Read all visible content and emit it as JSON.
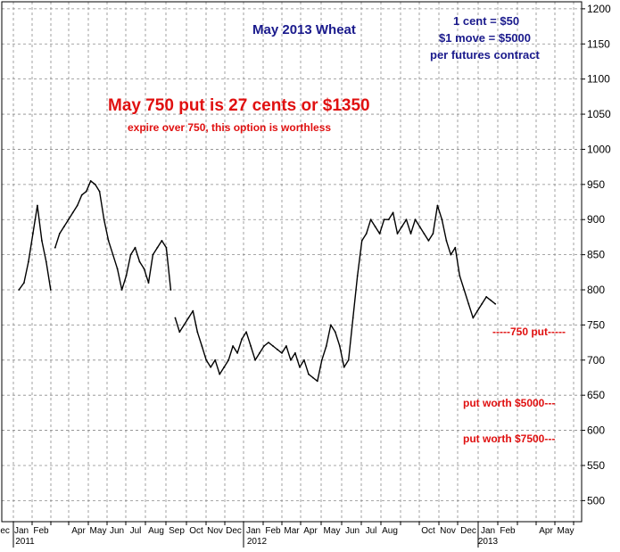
{
  "chart_data": {
    "type": "line",
    "title": "May 2013 Wheat",
    "notes": [
      "1 cent = $50",
      "$1 move = $5000",
      "per futures contract"
    ],
    "headline": "May 750 put is 27 cents or $1350",
    "subhead": "expire over 750, this option is worthless",
    "ylim": [
      470,
      1210
    ],
    "y_ticks": [
      500,
      550,
      600,
      650,
      700,
      750,
      800,
      850,
      900,
      950,
      1000,
      1050,
      1100,
      1150,
      1200
    ],
    "x_ticks": [
      "Dec",
      "Jan",
      "Feb",
      "Apr",
      "May",
      "Jun",
      "Jul",
      "Aug",
      "Sep",
      "Oct",
      "Nov",
      "Dec",
      "Jan",
      "Feb",
      "Mar",
      "Apr",
      "May",
      "Jun",
      "Jul",
      "Aug",
      "Oct",
      "Nov",
      "Dec",
      "Jan",
      "Feb",
      "Apr",
      "May"
    ],
    "year_labels": [
      "2011",
      "2012",
      "2013"
    ],
    "annotations": [
      {
        "text": "-----750 put-----",
        "y": 750
      },
      {
        "text": "put worth $5000---",
        "y": 650
      },
      {
        "text": "put worth $7500---",
        "y": 600
      }
    ],
    "series": [
      {
        "x": [
          "2010-12-28",
          "2011-01-05",
          "2011-01-12",
          "2011-01-19",
          "2011-01-26",
          "2011-02-02",
          "2011-02-09",
          "2011-02-16",
          "2011-02-23",
          "2011-03-02",
          "2011-03-09",
          "2011-03-16",
          "2011-03-23",
          "2011-03-30",
          "2011-04-06",
          "2011-04-13",
          "2011-04-20",
          "2011-04-27",
          "2011-05-04",
          "2011-05-11",
          "2011-05-18",
          "2011-05-25",
          "2011-06-01",
          "2011-06-08",
          "2011-06-15",
          "2011-06-22",
          "2011-06-29",
          "2011-07-06",
          "2011-07-13",
          "2011-07-20",
          "2011-07-27",
          "2011-08-03",
          "2011-08-10",
          "2011-08-17",
          "2011-08-24",
          "2011-08-31",
          "2011-09-07",
          "2011-09-14",
          "2011-09-21",
          "2011-09-28",
          "2011-10-05",
          "2011-10-12",
          "2011-10-19",
          "2011-10-26",
          "2011-11-02",
          "2011-11-09",
          "2011-11-16",
          "2011-11-23",
          "2011-11-30",
          "2011-12-07",
          "2011-12-14",
          "2011-12-21",
          "2011-12-28",
          "2012-01-04",
          "2012-01-11",
          "2012-01-18",
          "2012-01-25",
          "2012-02-01",
          "2012-02-08",
          "2012-02-15",
          "2012-02-22",
          "2012-02-29",
          "2012-03-07",
          "2012-03-14",
          "2012-03-21",
          "2012-03-28",
          "2012-04-04",
          "2012-04-11",
          "2012-04-18",
          "2012-04-25",
          "2012-05-02",
          "2012-05-09",
          "2012-05-16",
          "2012-05-23",
          "2012-05-30",
          "2012-06-06",
          "2012-06-13",
          "2012-06-20",
          "2012-06-27",
          "2012-07-04",
          "2012-07-11",
          "2012-07-18",
          "2012-07-25",
          "2012-08-01",
          "2012-08-08",
          "2012-08-15",
          "2012-08-22",
          "2012-08-29",
          "2012-09-05",
          "2012-09-12",
          "2012-09-19",
          "2012-09-26",
          "2012-10-03",
          "2012-10-10",
          "2012-10-17",
          "2012-10-24",
          "2012-10-31",
          "2012-11-07",
          "2012-11-14",
          "2012-11-21",
          "2012-11-28",
          "2012-12-05",
          "2012-12-12",
          "2012-12-19",
          "2012-12-26",
          "2013-01-02",
          "2013-01-09",
          "2013-01-16"
        ],
        "values": [
          800,
          810,
          840,
          880,
          920,
          870,
          840,
          800,
          860,
          880,
          890,
          900,
          910,
          920,
          935,
          940,
          955,
          950,
          940,
          900,
          870,
          850,
          830,
          800,
          820,
          850,
          860,
          840,
          830,
          810,
          850,
          860,
          870,
          860,
          800,
          760,
          740,
          750,
          760,
          770,
          740,
          720,
          700,
          690,
          700,
          680,
          690,
          700,
          720,
          710,
          730,
          740,
          720,
          700,
          710,
          720,
          725,
          720,
          715,
          710,
          720,
          700,
          710,
          690,
          700,
          680,
          675,
          670,
          700,
          720,
          750,
          740,
          720,
          690,
          700,
          760,
          820,
          870,
          880,
          900,
          890,
          880,
          900,
          900,
          910,
          880,
          890,
          900,
          880,
          900,
          890,
          880,
          870,
          880,
          920,
          900,
          870,
          850,
          860,
          820,
          800,
          780,
          760,
          770,
          780,
          790,
          785,
          780
        ],
        "gaps_after": [
          "2011-02-16",
          "2011-08-24"
        ]
      }
    ]
  }
}
